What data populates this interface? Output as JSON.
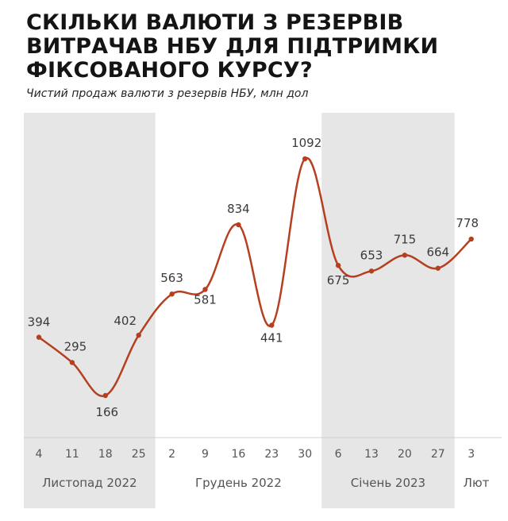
{
  "title": "СКІЛЬКИ ВАЛЮТИ З РЕЗЕРВІВ ВИТРАЧАВ НБУ ДЛЯ ПІДТРИМКИ ФІКСОВАНОГО КУРСУ?",
  "subtitle": "Чистий продаж валюти з резервів НБУ, млн дол",
  "chart_data": {
    "type": "line",
    "title": "СКІЛЬКИ ВАЛЮТИ З РЕЗЕРВІВ ВИТРАЧАВ НБУ ДЛЯ ПІДТРИМКИ ФІКСОВАНОГО КУРСУ?",
    "subtitle": "Чистий продаж валюти з резервів НБУ, млн дол",
    "x": [
      "4",
      "11",
      "18",
      "25",
      "2",
      "9",
      "16",
      "23",
      "30",
      "6",
      "13",
      "20",
      "27",
      "3"
    ],
    "values": [
      394,
      295,
      166,
      402,
      563,
      581,
      834,
      441,
      1092,
      675,
      653,
      715,
      664,
      778
    ],
    "data_labels": [
      "394",
      "295",
      "166",
      "402",
      "563",
      "581",
      "834",
      "441",
      "1092",
      "675",
      "653",
      "715",
      "664",
      "778"
    ],
    "months": [
      {
        "label": "Листопад 2022",
        "shaded": true
      },
      {
        "label": "Грудень 2022",
        "shaded": false
      },
      {
        "label": "Січень 2023",
        "shaded": true
      },
      {
        "label": "Лют",
        "shaded": false
      }
    ],
    "ylim": [
      0,
      1200
    ],
    "grid": false,
    "legend": "none",
    "colors": {
      "line": "#b5401f",
      "band": "#e6e6e6",
      "axis": "#d0d0d0"
    }
  }
}
